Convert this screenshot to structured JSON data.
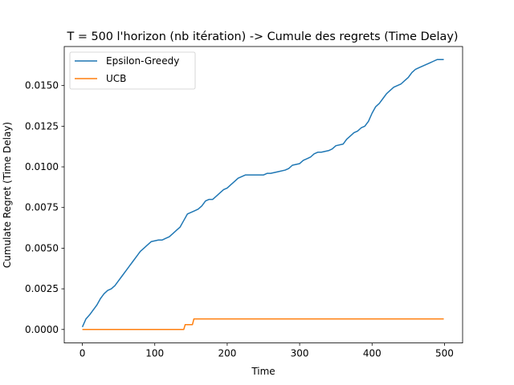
{
  "chart_data": {
    "type": "line",
    "title": "T = 500 l'horizon (nb itération) -> Cumule des regrets (Time Delay)",
    "xlabel": "Time",
    "ylabel": "Cumulate Regret (Time Delay)",
    "xlim": [
      -25,
      525
    ],
    "ylim": [
      -0.00083,
      0.0174
    ],
    "xticks": [
      "0",
      "100",
      "200",
      "300",
      "400",
      "500"
    ],
    "yticks": [
      "0.0000",
      "0.0025",
      "0.0050",
      "0.0075",
      "0.0100",
      "0.0125",
      "0.0150"
    ],
    "grid": false,
    "legend": "top-left",
    "series": [
      {
        "name": "Epsilon-Greedy",
        "color": "#1f77b4",
        "points": [
          [
            0,
            0.00015
          ],
          [
            5,
            0.00065
          ],
          [
            10,
            0.0009
          ],
          [
            15,
            0.0012
          ],
          [
            20,
            0.0015
          ],
          [
            25,
            0.0019
          ],
          [
            30,
            0.0022
          ],
          [
            35,
            0.0024
          ],
          [
            40,
            0.0025
          ],
          [
            45,
            0.0027
          ],
          [
            50,
            0.003
          ],
          [
            55,
            0.0033
          ],
          [
            60,
            0.0036
          ],
          [
            65,
            0.0039
          ],
          [
            70,
            0.0042
          ],
          [
            75,
            0.0045
          ],
          [
            80,
            0.0048
          ],
          [
            85,
            0.005
          ],
          [
            90,
            0.0052
          ],
          [
            95,
            0.0054
          ],
          [
            100,
            0.00545
          ],
          [
            105,
            0.0055
          ],
          [
            110,
            0.0055
          ],
          [
            115,
            0.0056
          ],
          [
            120,
            0.0057
          ],
          [
            125,
            0.0059
          ],
          [
            130,
            0.0061
          ],
          [
            135,
            0.0063
          ],
          [
            140,
            0.0067
          ],
          [
            145,
            0.0071
          ],
          [
            150,
            0.0072
          ],
          [
            155,
            0.0073
          ],
          [
            160,
            0.0074
          ],
          [
            165,
            0.0076
          ],
          [
            170,
            0.0079
          ],
          [
            175,
            0.008
          ],
          [
            180,
            0.008
          ],
          [
            185,
            0.0082
          ],
          [
            190,
            0.0084
          ],
          [
            195,
            0.0086
          ],
          [
            200,
            0.0087
          ],
          [
            205,
            0.0089
          ],
          [
            210,
            0.0091
          ],
          [
            215,
            0.0093
          ],
          [
            220,
            0.0094
          ],
          [
            225,
            0.0095
          ],
          [
            230,
            0.0095
          ],
          [
            240,
            0.0095
          ],
          [
            250,
            0.0095
          ],
          [
            255,
            0.0096
          ],
          [
            260,
            0.0096
          ],
          [
            270,
            0.0097
          ],
          [
            280,
            0.0098
          ],
          [
            285,
            0.0099
          ],
          [
            290,
            0.0101
          ],
          [
            300,
            0.0102
          ],
          [
            305,
            0.0104
          ],
          [
            310,
            0.0105
          ],
          [
            315,
            0.0106
          ],
          [
            320,
            0.0108
          ],
          [
            325,
            0.0109
          ],
          [
            330,
            0.0109
          ],
          [
            340,
            0.011
          ],
          [
            345,
            0.0111
          ],
          [
            350,
            0.0113
          ],
          [
            360,
            0.0114
          ],
          [
            365,
            0.0117
          ],
          [
            370,
            0.0119
          ],
          [
            375,
            0.0121
          ],
          [
            380,
            0.0122
          ],
          [
            385,
            0.0124
          ],
          [
            390,
            0.0125
          ],
          [
            395,
            0.0128
          ],
          [
            400,
            0.0133
          ],
          [
            405,
            0.0137
          ],
          [
            410,
            0.0139
          ],
          [
            415,
            0.0142
          ],
          [
            420,
            0.0145
          ],
          [
            425,
            0.0147
          ],
          [
            430,
            0.0149
          ],
          [
            435,
            0.015
          ],
          [
            440,
            0.0151
          ],
          [
            445,
            0.0153
          ],
          [
            450,
            0.0155
          ],
          [
            455,
            0.0158
          ],
          [
            460,
            0.016
          ],
          [
            465,
            0.0161
          ],
          [
            470,
            0.0162
          ],
          [
            475,
            0.0163
          ],
          [
            480,
            0.0164
          ],
          [
            485,
            0.0165
          ],
          [
            490,
            0.0166
          ],
          [
            495,
            0.0166
          ],
          [
            499,
            0.0166
          ]
        ]
      },
      {
        "name": "UCB",
        "color": "#ff7f0e",
        "points": [
          [
            0,
            0.0
          ],
          [
            140,
            0.0
          ],
          [
            142,
            0.0003
          ],
          [
            152,
            0.0003
          ],
          [
            154,
            0.00065
          ],
          [
            499,
            0.00065
          ]
        ]
      }
    ]
  }
}
